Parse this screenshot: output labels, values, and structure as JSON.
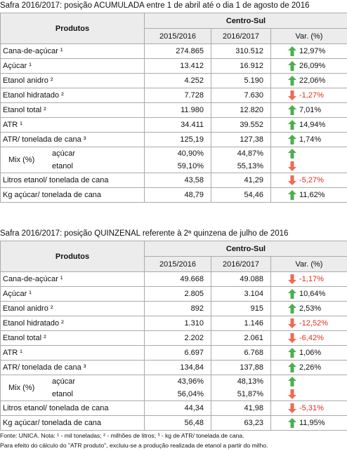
{
  "tables": [
    {
      "title": "Safra 2016/2017: posição ACUMULADA entre 1 de abril até o dia 1 de agosto de 2016",
      "header": {
        "products": "Produtos",
        "region": "Centro-Sul",
        "col1": "2015/2016",
        "col2": "2016/2017",
        "var": "Var. (%)"
      },
      "rows": [
        {
          "label": "Cana-de-açúcar ¹",
          "v1": "274.865",
          "v2": "310.512",
          "var": "12,97%",
          "dir": "up"
        },
        {
          "label": "Açúcar ¹",
          "v1": "13.412",
          "v2": "16.912",
          "var": "26,09%",
          "dir": "up"
        },
        {
          "label": "Etanol anidro ²",
          "v1": "4.252",
          "v2": "5.190",
          "var": "22,06%",
          "dir": "up"
        },
        {
          "label": "Etanol hidratado ²",
          "v1": "7.728",
          "v2": "7.630",
          "var": "-1,27%",
          "dir": "down"
        },
        {
          "label": "Etanol total ²",
          "v1": "11.980",
          "v2": "12.820",
          "var": "7,01%",
          "dir": "up"
        },
        {
          "label": "ATR ¹",
          "v1": "34.411",
          "v2": "39.552",
          "var": "14,94%",
          "dir": "up"
        },
        {
          "label": "ATR/ tonelada de cana ³",
          "v1": "125,19",
          "v2": "127,38",
          "var": "1,74%",
          "dir": "up"
        },
        {
          "label": "Mix (%)",
          "sub": [
            {
              "label": "açúcar",
              "v1": "40,90%",
              "v2": "44,87%",
              "dir": "up"
            },
            {
              "label": "etanol",
              "v1": "59,10%",
              "v2": "55,13%",
              "dir": "down"
            }
          ]
        },
        {
          "label": "Litros etanol/ tonelada de cana",
          "v1": "43,58",
          "v2": "41,29",
          "var": "-5,27%",
          "dir": "down"
        },
        {
          "label": "Kg açúcar/ tonelada de cana",
          "v1": "48,79",
          "v2": "54,46",
          "var": "11,62%",
          "dir": "up"
        }
      ]
    },
    {
      "title": "Safra 2016/2017: posição QUINZENAL referente à 2ª quinzena de julho de 2016",
      "header": {
        "products": "Produtos",
        "region": "Centro-Sul",
        "col1": "2015/2016",
        "col2": "2016/2017",
        "var": "Var. (%)"
      },
      "rows": [
        {
          "label": "Cana-de-açúcar ¹",
          "v1": "49.668",
          "v2": "49.088",
          "var": "-1,17%",
          "dir": "down"
        },
        {
          "label": "Açúcar ¹",
          "v1": "2.805",
          "v2": "3.104",
          "var": "10,64%",
          "dir": "up"
        },
        {
          "label": "Etanol anidro ²",
          "v1": "892",
          "v2": "915",
          "var": "2,53%",
          "dir": "up"
        },
        {
          "label": "Etanol hidratado ²",
          "v1": "1.310",
          "v2": "1.146",
          "var": "-12,52%",
          "dir": "down"
        },
        {
          "label": "Etanol total ²",
          "v1": "2.202",
          "v2": "2.061",
          "var": "-6,42%",
          "dir": "down"
        },
        {
          "label": "ATR ¹",
          "v1": "6.697",
          "v2": "6.768",
          "var": "1,06%",
          "dir": "up"
        },
        {
          "label": "ATR/ tonelada de cana ³",
          "v1": "134,84",
          "v2": "137,88",
          "var": "2,26%",
          "dir": "up"
        },
        {
          "label": "Mix (%)",
          "sub": [
            {
              "label": "açúcar",
              "v1": "43,96%",
              "v2": "48,13%",
              "dir": "up"
            },
            {
              "label": "etanol",
              "v1": "56,04%",
              "v2": "51,87%",
              "dir": "down"
            }
          ]
        },
        {
          "label": "Litros etanol/ tonelada de cana",
          "v1": "44,34",
          "v2": "41,98",
          "var": "-5,31%",
          "dir": "down"
        },
        {
          "label": "Kg açúcar/ tonelada de cana",
          "v1": "56,48",
          "v2": "63,23",
          "var": "11,95%",
          "dir": "up"
        }
      ]
    }
  ],
  "notes": [
    "Fonte: UNICA. Nota: ¹ - mil toneladas; ² - milhões de litros; ³ - kg de ATR/ tonelada de cana.",
    "Para efeito do cálculo do \"ATR produto\", excluiu-se a produção realizada de etanol a partir do milho."
  ]
}
